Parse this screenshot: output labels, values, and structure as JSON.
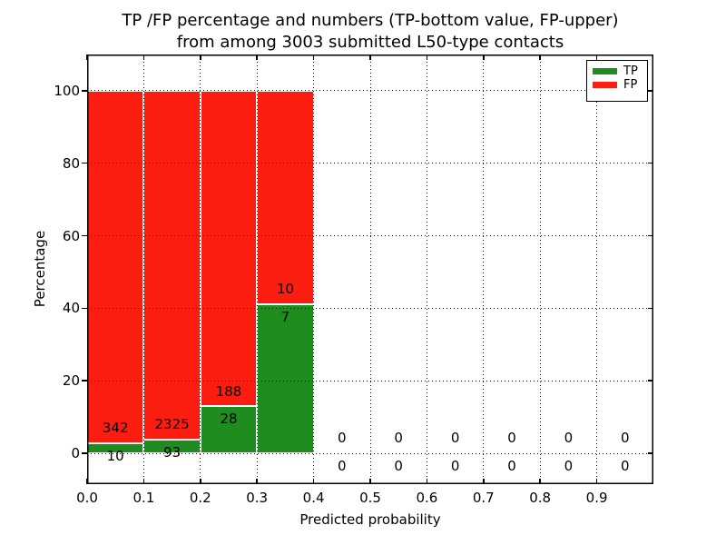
{
  "title": {
    "line1": "TP /FP percentage and numbers (TP-bottom value, FP-upper)",
    "line2": "from among 3003 submitted L50-type contacts"
  },
  "axes": {
    "xlabel": "Predicted probability",
    "ylabel": "Percentage",
    "x_tick_labels": [
      "0.0",
      "0.1",
      "0.2",
      "0.3",
      "0.4",
      "0.5",
      "0.6",
      "0.7",
      "0.8",
      "0.9"
    ],
    "y_tick_labels": [
      "0",
      "20",
      "40",
      "60",
      "80",
      "100"
    ]
  },
  "legend": {
    "items": [
      {
        "label": "TP",
        "color": "#1f8c1f"
      },
      {
        "label": "FP",
        "color": "#fb1d10"
      }
    ]
  },
  "chart_data": {
    "type": "bar",
    "stacked": true,
    "orientation": "vertical",
    "title": "TP /FP percentage and numbers (TP-bottom value, FP-upper) from among 3003 submitted L50-type contacts",
    "xlabel": "Predicted probability",
    "ylabel": "Percentage",
    "xlim": [
      0.0,
      1.0
    ],
    "ylim": [
      -8.5,
      110
    ],
    "x_ticks": [
      0.0,
      0.1,
      0.2,
      0.3,
      0.4,
      0.5,
      0.6,
      0.7,
      0.8,
      0.9
    ],
    "y_ticks": [
      0,
      20,
      40,
      60,
      80,
      100
    ],
    "grid": "dotted",
    "legend_position": "upper right",
    "total_contacts": 3003,
    "series": [
      {
        "name": "TP",
        "color": "#1f8c1f"
      },
      {
        "name": "FP",
        "color": "#fb1d10"
      }
    ],
    "bins": [
      {
        "x0": 0.0,
        "x1": 0.1,
        "tp_count": 10,
        "fp_count": 342,
        "tp_pct": 2.84,
        "fp_pct": 97.16
      },
      {
        "x0": 0.1,
        "x1": 0.2,
        "tp_count": 93,
        "fp_count": 2325,
        "tp_pct": 3.85,
        "fp_pct": 96.15
      },
      {
        "x0": 0.2,
        "x1": 0.3,
        "tp_count": 28,
        "fp_count": 188,
        "tp_pct": 12.96,
        "fp_pct": 87.04
      },
      {
        "x0": 0.3,
        "x1": 0.4,
        "tp_count": 7,
        "fp_count": 10,
        "tp_pct": 41.18,
        "fp_pct": 58.82
      },
      {
        "x0": 0.4,
        "x1": 0.5,
        "tp_count": 0,
        "fp_count": 0,
        "tp_pct": 0,
        "fp_pct": 0
      },
      {
        "x0": 0.5,
        "x1": 0.6,
        "tp_count": 0,
        "fp_count": 0,
        "tp_pct": 0,
        "fp_pct": 0
      },
      {
        "x0": 0.6,
        "x1": 0.7,
        "tp_count": 0,
        "fp_count": 0,
        "tp_pct": 0,
        "fp_pct": 0
      },
      {
        "x0": 0.7,
        "x1": 0.8,
        "tp_count": 0,
        "fp_count": 0,
        "tp_pct": 0,
        "fp_pct": 0
      },
      {
        "x0": 0.8,
        "x1": 0.9,
        "tp_count": 0,
        "fp_count": 0,
        "tp_pct": 0,
        "fp_pct": 0
      },
      {
        "x0": 0.9,
        "x1": 1.0,
        "tp_count": 0,
        "fp_count": 0,
        "tp_pct": 0,
        "fp_pct": 0
      }
    ]
  }
}
